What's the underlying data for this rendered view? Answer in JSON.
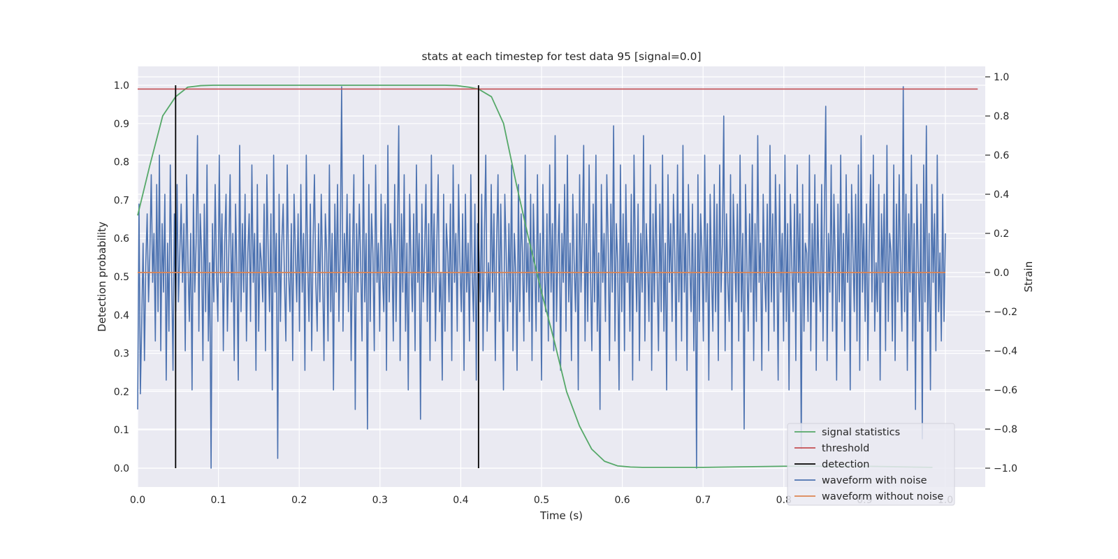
{
  "chart_data": {
    "type": "line",
    "title": "stats at each timestep for test data 95 [signal=0.0]",
    "xlabel": "Time (s)",
    "ylabel_left": "Detection probability",
    "ylabel_right": "Strain",
    "xlim": [
      0.0,
      1.05
    ],
    "ylim_left": [
      -0.048,
      1.05
    ],
    "ylim_right": [
      -1.09,
      1.05
    ],
    "x_ticks": [
      "0.0",
      "0.1",
      "0.2",
      "0.3",
      "0.4",
      "0.5",
      "0.6",
      "0.7",
      "0.8",
      "0.9",
      "1.0"
    ],
    "y_ticks_left": [
      "0.0",
      "0.1",
      "0.2",
      "0.3",
      "0.4",
      "0.5",
      "0.6",
      "0.7",
      "0.8",
      "0.9",
      "1.0"
    ],
    "y_ticks_right": [
      "−1.0",
      "−0.8",
      "−0.6",
      "−0.4",
      "−0.2",
      "0.0",
      "0.2",
      "0.4",
      "0.6",
      "0.8",
      "1.0"
    ],
    "grid": true,
    "legend_position": "lower-right",
    "colors": {
      "plot_background": "#eaeaf2",
      "signal_statistics": "#55a868",
      "threshold": "#c44e52",
      "detection": "#000000",
      "waveform_with_noise": "#4c72b0",
      "waveform_without_noise": "#dd8452"
    },
    "series": [
      {
        "name": "signal statistics",
        "axis": "left",
        "x": [
          0.0,
          0.015,
          0.031,
          0.047,
          0.062,
          0.078,
          0.094,
          0.11,
          0.2,
          0.3,
          0.38,
          0.395,
          0.41,
          0.422,
          0.438,
          0.453,
          0.469,
          0.484,
          0.5,
          0.516,
          0.531,
          0.547,
          0.562,
          0.578,
          0.594,
          0.61,
          0.625,
          0.7,
          0.8,
          0.9,
          0.984
        ],
        "y": [
          0.66,
          0.79,
          0.92,
          0.97,
          0.995,
          0.999,
          1.0,
          1.0,
          1.0,
          1.0,
          1.0,
          0.999,
          0.995,
          0.99,
          0.97,
          0.9,
          0.74,
          0.6,
          0.46,
          0.33,
          0.2,
          0.11,
          0.05,
          0.018,
          0.006,
          0.003,
          0.002,
          0.002,
          0.005,
          0.005,
          0.002
        ]
      },
      {
        "name": "threshold",
        "axis": "left",
        "x": [
          0.0,
          1.04
        ],
        "y": [
          0.99,
          0.99
        ]
      },
      {
        "name": "detection",
        "axis": "left",
        "x": [
          0.047,
          0.422
        ],
        "y_range": [
          0.0,
          1.0
        ]
      },
      {
        "name": "waveform with noise",
        "axis": "right",
        "x_range": [
          0.0,
          1.0
        ],
        "y": [
          -0.7,
          0.35,
          -0.62,
          -0.25,
          0.15,
          -0.45,
          0.05,
          0.3,
          -0.15,
          0.1,
          0.5,
          -0.05,
          0.2,
          -0.35,
          0.45,
          -0.2,
          0.6,
          -0.4,
          0.25,
          -0.1,
          0.4,
          -0.55,
          0.15,
          -0.3,
          0.55,
          0.0,
          -0.5,
          0.3,
          -0.2,
          0.45,
          -0.15,
          0.1,
          0.35,
          -0.05,
          0.25,
          -0.4,
          0.5,
          0.05,
          -0.25,
          0.2,
          -0.6,
          0.4,
          -0.1,
          0.15,
          0.7,
          -0.3,
          0.3,
          0.1,
          -0.45,
          0.35,
          -0.2,
          0.55,
          -0.35,
          0.05,
          -1.0,
          0.25,
          -0.15,
          0.45,
          0.0,
          -0.25,
          0.6,
          -0.05,
          0.3,
          -0.4,
          0.15,
          0.4,
          -0.3,
          0.1,
          0.5,
          -0.15,
          0.2,
          -0.45,
          0.35,
          0.0,
          -0.55,
          0.65,
          -0.2,
          0.25,
          -0.1,
          0.4,
          -0.35,
          0.1,
          0.3,
          -0.25,
          0.55,
          -0.05,
          0.2,
          -0.5,
          0.45,
          -0.3,
          0.15,
          0.05,
          -0.15,
          0.35,
          -0.4,
          0.5,
          0.1,
          -0.2,
          0.3,
          -0.6,
          0.6,
          -0.1,
          0.2,
          -0.95,
          0.4,
          -0.25,
          0.15,
          0.35,
          -0.05,
          -0.35,
          0.55,
          0.0,
          -0.2,
          0.25,
          -0.45,
          0.4,
          0.1,
          -0.15,
          0.3,
          -0.3,
          0.45,
          -0.1,
          0.2,
          -0.5,
          0.6,
          0.05,
          -0.25,
          0.35,
          -0.4,
          0.15,
          0.5,
          -0.05,
          -0.3,
          0.25,
          -0.15,
          0.4,
          0.0,
          -0.45,
          0.3,
          0.1,
          -0.35,
          0.55,
          -0.2,
          0.2,
          -0.6,
          0.35,
          -0.1,
          0.45,
          -0.25,
          0.15,
          0.95,
          -0.3,
          0.2,
          -0.05,
          0.4,
          -0.2,
          0.3,
          -0.45,
          0.1,
          0.5,
          -0.7,
          0.25,
          -0.1,
          0.35,
          0.05,
          -0.35,
          0.6,
          -0.15,
          0.2,
          -0.8,
          0.45,
          -0.25,
          0.3,
          0.1,
          -0.4,
          0.55,
          -0.05,
          0.15,
          -0.3,
          0.4,
          0.0,
          -0.2,
          0.35,
          -0.5,
          0.65,
          -0.15,
          0.25,
          0.1,
          -0.35,
          0.45,
          -0.25,
          0.2,
          0.75,
          -0.45,
          0.3,
          -0.1,
          0.5,
          -0.3,
          0.15,
          -0.6,
          0.4,
          0.05,
          -0.2,
          0.3,
          -0.4,
          0.55,
          -0.05,
          0.2,
          -0.75,
          0.35,
          -0.15,
          0.1,
          0.45,
          -0.25,
          0.25,
          -0.45,
          0.6,
          -0.1,
          0.3,
          -0.35,
          0.15,
          0.5,
          -0.2,
          0.0,
          -0.55,
          0.4,
          -0.3,
          0.25,
          0.1,
          -0.15,
          0.35,
          -0.45,
          0.55,
          -0.05,
          0.2,
          -0.3,
          0.45,
          0.05,
          -0.2,
          0.3,
          -0.5,
          0.4,
          -0.1,
          0.15,
          -0.35,
          0.5,
          0.0,
          -0.25,
          0.35,
          -0.55,
          0.25,
          0.1,
          -0.15,
          0.4,
          -0.4,
          0.2,
          0.6,
          -0.3,
          0.05,
          -0.2,
          0.45,
          -0.1,
          0.3,
          -0.45,
          0.15,
          0.5,
          -0.25,
          0.35,
          -0.05,
          -0.6,
          0.4,
          0.1,
          -0.3,
          0.25,
          -0.15,
          0.55,
          -0.4,
          0.2,
          0.0,
          -0.5,
          0.45,
          -0.2,
          0.3,
          0.1,
          -0.35,
          0.6,
          -0.1,
          0.15,
          -0.25,
          0.4,
          -0.45,
          0.35,
          0.05,
          -0.3,
          0.5,
          -0.15,
          0.2,
          -0.55,
          0.45,
          0.0,
          -0.2,
          0.3,
          -0.35,
          0.55,
          -0.1,
          0.25,
          -0.4,
          0.7,
          -0.25,
          0.1,
          0.35,
          -0.5,
          0.2,
          -0.05,
          0.45,
          -0.3,
          0.6,
          -0.15,
          0.15,
          -0.45,
          0.4,
          0.05,
          -0.2,
          0.3,
          -0.6,
          0.5,
          -0.1,
          0.2,
          0.65,
          -0.35,
          0.25,
          -0.25,
          0.55,
          0.0,
          -0.4,
          0.35,
          -0.15,
          0.6,
          -0.3,
          0.1,
          -0.7,
          0.45,
          -0.05,
          0.2,
          -0.25,
          0.5,
          0.15,
          -0.45,
          0.35,
          -0.1,
          0.75,
          -0.35,
          0.25,
          0.05,
          -0.6,
          0.55,
          -0.2,
          0.3,
          -0.4,
          0.45,
          -0.05,
          0.15,
          -0.3,
          0.4,
          -0.55,
          0.6,
          0.1,
          -0.2,
          0.35,
          -0.45,
          0.2,
          -0.1,
          0.7,
          -0.35,
          0.25,
          0.05,
          -0.25,
          0.55,
          -0.5,
          0.3,
          -0.15,
          0.45,
          0.0,
          -0.4,
          0.35,
          -0.2,
          0.6,
          -0.3,
          0.15,
          -0.6,
          0.5,
          -0.05,
          0.25,
          -0.25,
          0.4,
          0.1,
          -0.45,
          0.55,
          -0.15,
          0.3,
          -0.35,
          0.65,
          -0.1,
          0.2,
          -0.5,
          0.45,
          0.05,
          -0.2,
          0.35,
          -0.4,
          0.2,
          -1.0,
          0.5,
          -0.25,
          0.3,
          0.1,
          -0.35,
          0.6,
          -0.15,
          0.25,
          -0.55,
          0.4,
          0.0,
          -0.3,
          0.45,
          -0.2,
          0.35,
          -0.45,
          0.55,
          -0.1,
          0.15,
          0.8,
          -0.4,
          0.3,
          -0.05,
          -0.25,
          0.5,
          -0.6,
          0.4,
          0.1,
          -0.15,
          0.35,
          -0.35,
          0.6,
          -0.2,
          0.2,
          -0.8,
          0.45,
          0.05,
          -0.3,
          0.3,
          -0.1,
          0.55,
          -0.45,
          0.25,
          -0.25,
          0.7,
          -0.05,
          0.15,
          -0.5,
          0.4,
          0.0,
          -0.2,
          0.35,
          -0.4,
          0.65,
          -0.15,
          0.3,
          -0.3,
          0.5,
          0.1,
          -0.55,
          0.45,
          -0.1,
          0.2,
          -0.35,
          0.6,
          -0.25,
          0.25,
          -0.6,
          0.4,
          0.05,
          -0.2,
          0.35,
          -0.45,
          0.55,
          -0.05,
          0.3,
          -0.9,
          0.45,
          -0.3,
          0.15,
          0.1,
          -0.25,
          0.6,
          -0.4,
          0.25,
          -0.15,
          0.5,
          -0.5,
          0.35,
          0.0,
          -0.2,
          0.45,
          -0.35,
          0.3,
          0.85,
          -0.45,
          0.2,
          -0.1,
          0.55,
          -0.3,
          0.4,
          0.05,
          -0.55,
          0.35,
          -0.15,
          0.6,
          -0.25,
          0.2,
          -0.4,
          0.5,
          -0.05,
          0.3,
          -0.6,
          0.45,
          0.1,
          -0.2,
          0.4,
          -0.35,
          0.55,
          -0.5,
          0.7,
          -0.1,
          0.25,
          -0.25,
          0.35,
          -0.45,
          0.15,
          0.5,
          -0.15,
          0.6,
          -0.3,
          0.05,
          -0.2,
          0.45,
          -0.55,
          0.3,
          -0.05,
          0.4,
          -0.4,
          0.65,
          -0.25,
          0.2,
          0.1,
          -0.35,
          0.55,
          -0.45,
          0.35,
          -0.15,
          0.5,
          0.0,
          -0.3,
          0.95,
          -0.2,
          0.4,
          -0.5,
          0.3,
          -0.1,
          0.6,
          -0.35,
          0.25,
          -0.7,
          0.45,
          0.05,
          -0.25,
          0.35,
          -0.85,
          0.55,
          -0.15,
          0.75,
          -0.3,
          0.2,
          -0.6,
          0.45,
          -0.05,
          0.3,
          -0.4,
          0.6,
          -0.2,
          0.1,
          -0.35,
          0.4,
          -0.25,
          0.2
        ]
      },
      {
        "name": "waveform without noise",
        "axis": "right",
        "x": [
          0.0,
          1.0
        ],
        "y": [
          0.0,
          0.0
        ]
      }
    ],
    "legend": [
      "signal statistics",
      "threshold",
      "detection",
      "waveform with noise",
      "waveform without noise"
    ]
  }
}
